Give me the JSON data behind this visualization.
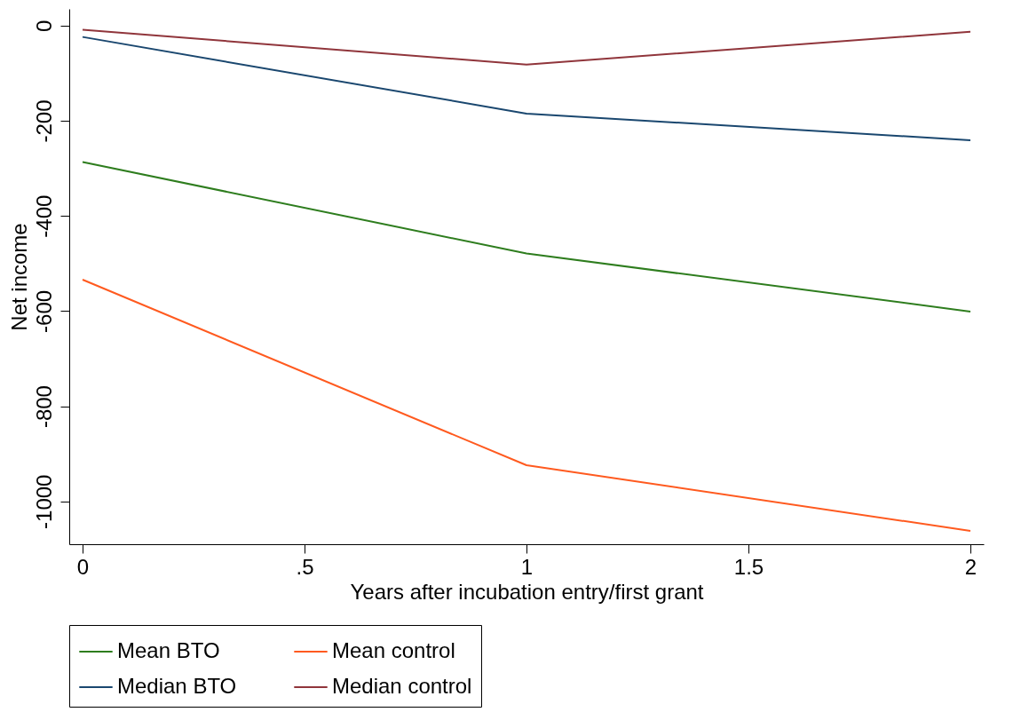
{
  "chart_data": {
    "type": "line",
    "xlabel": "Years after incubation entry/first grant",
    "ylabel": "Net income",
    "x": [
      0,
      1,
      2
    ],
    "series": [
      {
        "name": "Mean BTO",
        "color": "#2e7d1e",
        "values": [
          -287,
          -479,
          -601
        ]
      },
      {
        "name": "Mean control",
        "color": "#ff5a1f",
        "values": [
          -534,
          -924,
          -1062
        ]
      },
      {
        "name": "Median BTO",
        "color": "#1a476f",
        "values": [
          -24,
          -185,
          -241
        ]
      },
      {
        "name": "Median control",
        "color": "#90353b",
        "values": [
          -9,
          -82,
          -13
        ]
      }
    ],
    "xlim": [
      -0.03,
      2.03
    ],
    "xticks": [
      0,
      {
        "value": 0.5,
        "label": ".5"
      },
      1,
      1.5,
      2
    ],
    "ylim": [
      -1090,
      35
    ],
    "yticks": [
      0,
      -200,
      -400,
      -600,
      -800,
      -1000
    ],
    "grid": false,
    "legend": "bottom",
    "line_style": "solid"
  }
}
